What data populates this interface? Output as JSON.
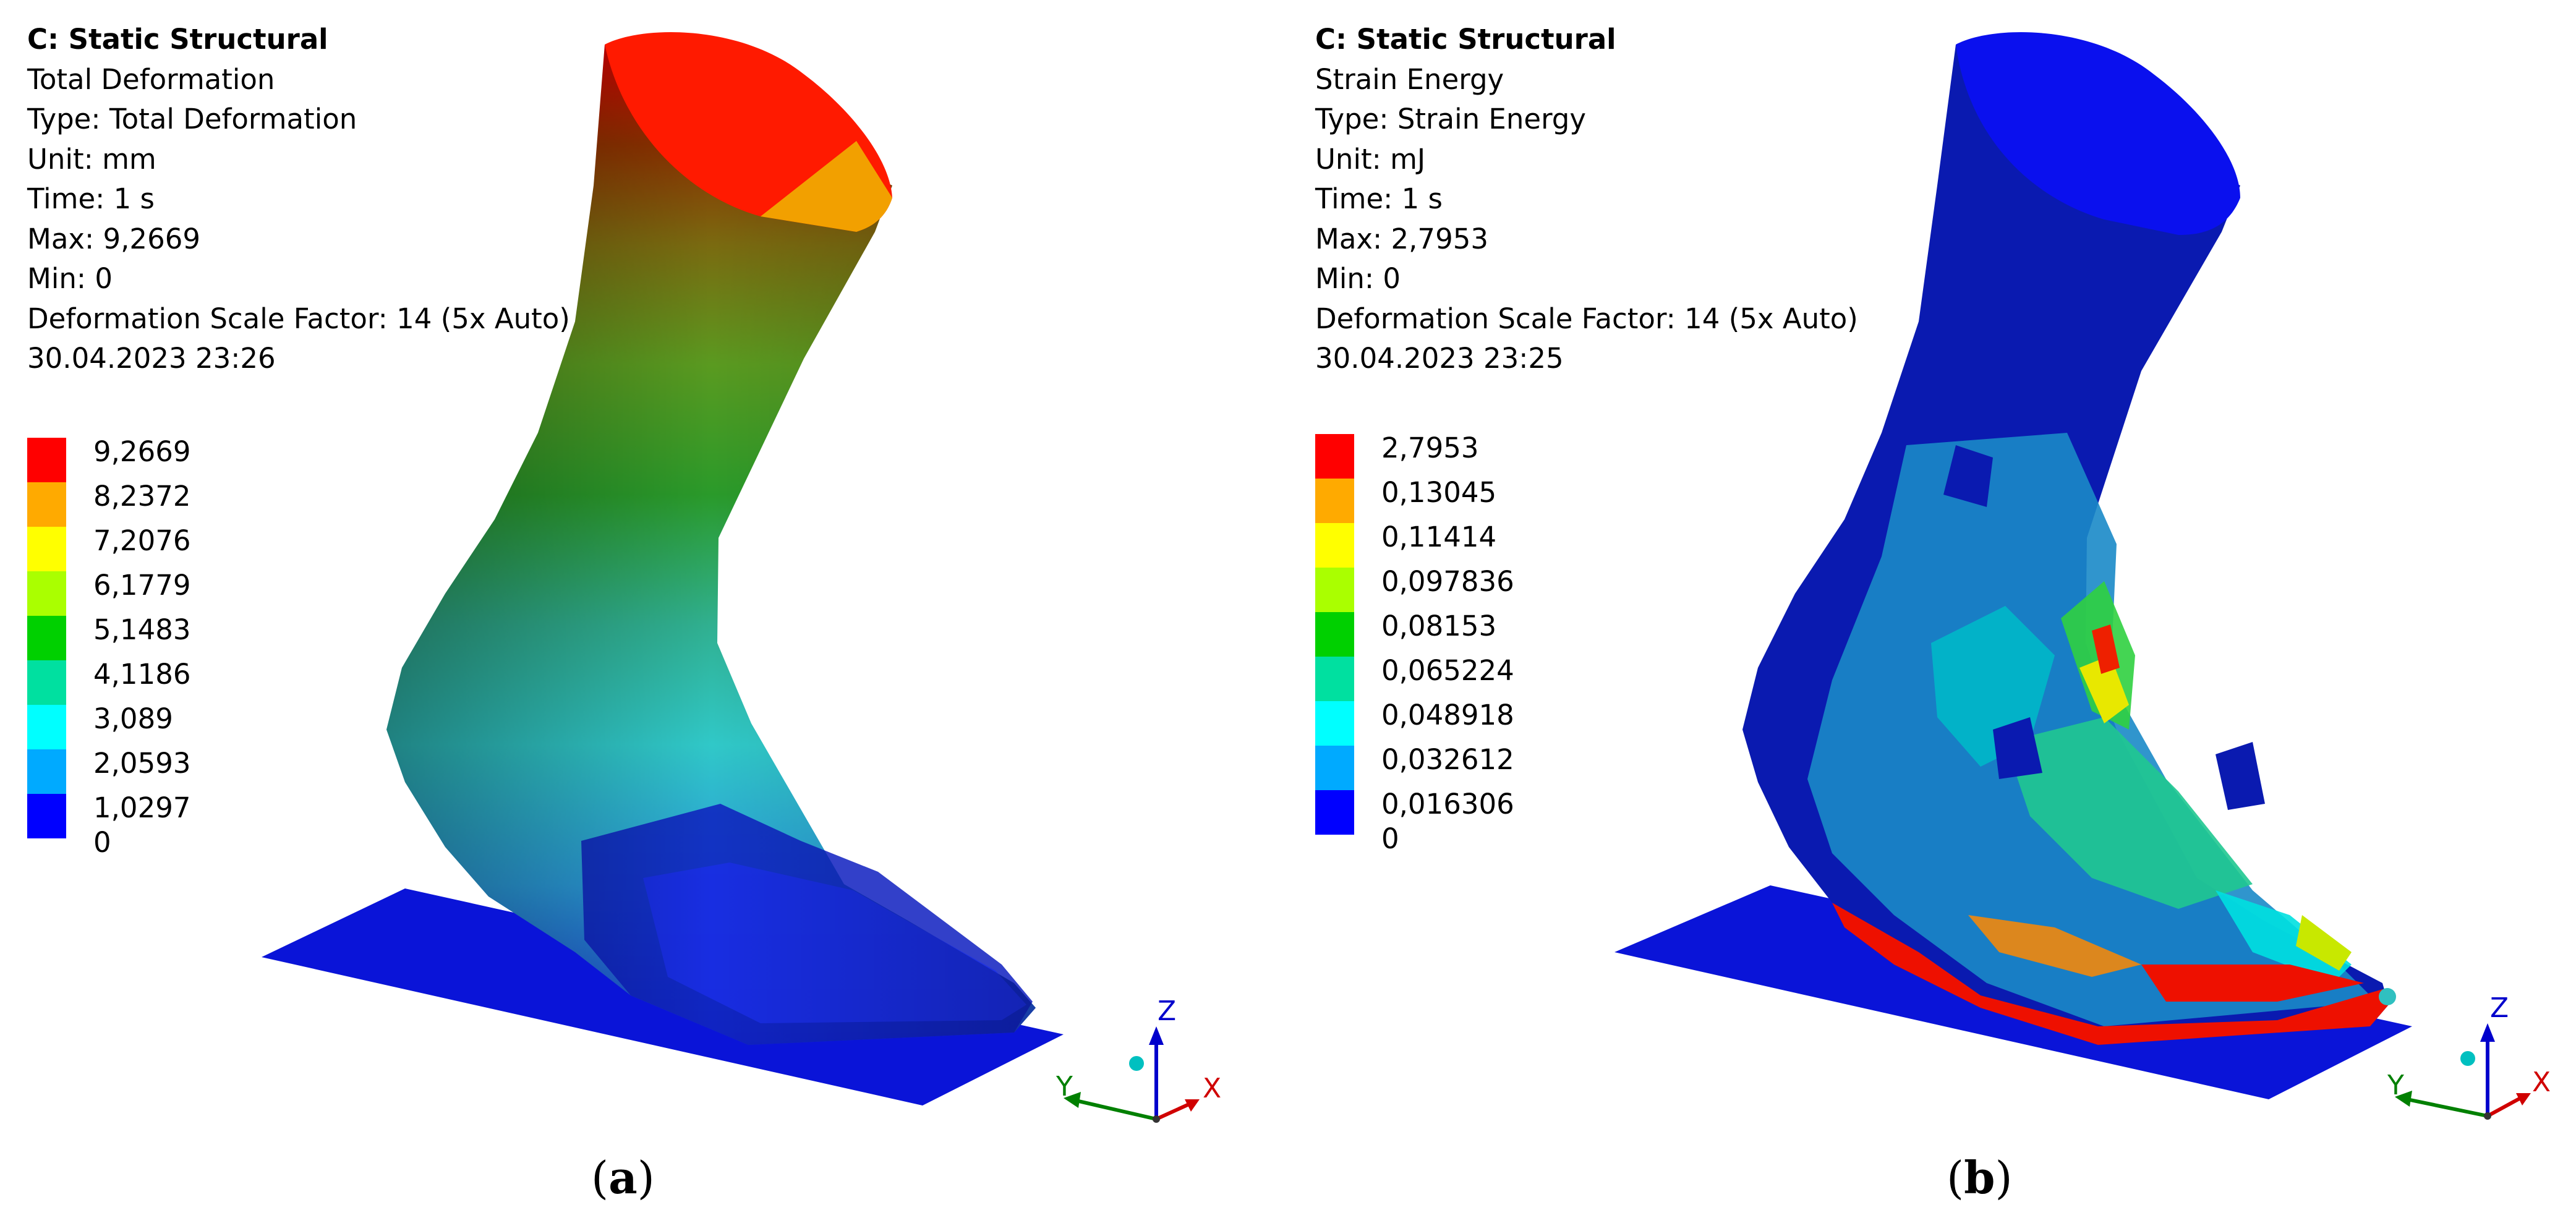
{
  "panels": [
    {
      "id": "a",
      "info": {
        "system": "C: Static Structural",
        "result": "Total Deformation",
        "type": "Type: Total Deformation",
        "unit": "Unit: mm",
        "time": "Time: 1 s",
        "max": "Max: 9,2669",
        "min": "Min: 0",
        "scale": "Deformation Scale Factor: 14 (5x Auto)",
        "timestamp": "30.04.2023 23:26"
      },
      "legend_values": [
        "9,2669",
        "8,2372",
        "7,2076",
        "6,1779",
        "5,1483",
        "4,1186",
        "3,089",
        "2,0593",
        "1,0297"
      ],
      "legend_min": "0",
      "caption_letter": "a"
    },
    {
      "id": "b",
      "info": {
        "system": "C: Static Structural",
        "result": "Strain Energy",
        "type": "Type: Strain Energy",
        "unit": "Unit: mJ",
        "time": "Time: 1 s",
        "max": "Max: 2,7953",
        "min": "Min: 0",
        "scale": "Deformation Scale Factor: 14 (5x Auto)",
        "timestamp": "30.04.2023 23:25"
      },
      "legend_values": [
        "2,7953",
        "0,13045",
        "0,11414",
        "0,097836",
        "0,08153",
        "0,065224",
        "0,048918",
        "0,032612",
        "0,016306"
      ],
      "legend_min": "0",
      "caption_letter": "b"
    }
  ],
  "legend_colors": [
    "#ff0000",
    "#ffaa00",
    "#ffff00",
    "#aaff00",
    "#00d000",
    "#00e0a0",
    "#00ffff",
    "#00aaff",
    "#0000ff"
  ],
  "triad": {
    "x": "X",
    "y": "Y",
    "z": "Z",
    "x_color": "#d00000",
    "y_color": "#008000",
    "z_color": "#0000cc"
  },
  "caption": {
    "open": "(",
    "close": ")"
  }
}
